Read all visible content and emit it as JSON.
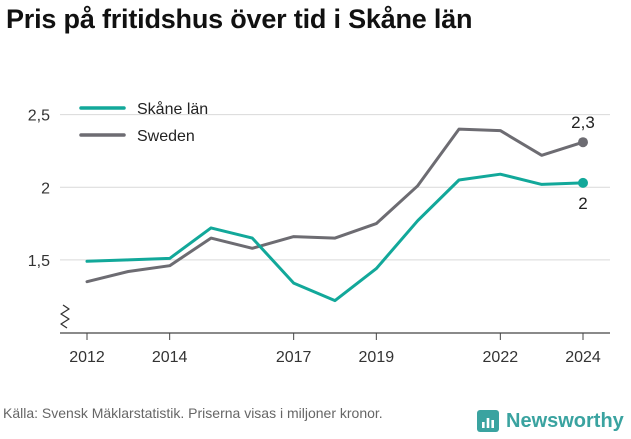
{
  "title": "Pris på fritidshus över tid i Skåne län",
  "source": "Källa: Svensk Mäklarstatistik. Priserna visas i miljoner kronor.",
  "brand": {
    "name": "Newsworthy",
    "color": "#3aa3a0"
  },
  "chart_data": {
    "type": "line",
    "title": "Pris på fritidshus över tid i Skåne län",
    "xlabel": "",
    "ylabel": "",
    "x": [
      2012,
      2013,
      2014,
      2015,
      2016,
      2017,
      2018,
      2019,
      2020,
      2021,
      2022,
      2023,
      2024
    ],
    "xticks": [
      2012,
      2014,
      2017,
      2019,
      2022,
      2024
    ],
    "xtick_labels": [
      "2012",
      "2014",
      "2017",
      "2019",
      "2022",
      "2024"
    ],
    "yticks": [
      1.5,
      2,
      2.5
    ],
    "ytick_labels": [
      "1,5",
      "2",
      "2,5"
    ],
    "ylim": [
      1.1,
      2.58
    ],
    "grid": true,
    "y_axis_break": true,
    "legend_position": "top-left",
    "series": [
      {
        "name": "Skåne län",
        "color": "#12a89a",
        "values": [
          1.49,
          1.5,
          1.51,
          1.72,
          1.65,
          1.34,
          1.22,
          1.44,
          1.77,
          2.05,
          2.09,
          2.02,
          2.03
        ],
        "end_label": "2"
      },
      {
        "name": "Sweden",
        "color": "#6d6c72",
        "values": [
          1.35,
          1.42,
          1.46,
          1.65,
          1.58,
          1.66,
          1.65,
          1.75,
          2.01,
          2.4,
          2.39,
          2.22,
          2.31
        ],
        "end_label": "2,3"
      }
    ]
  }
}
